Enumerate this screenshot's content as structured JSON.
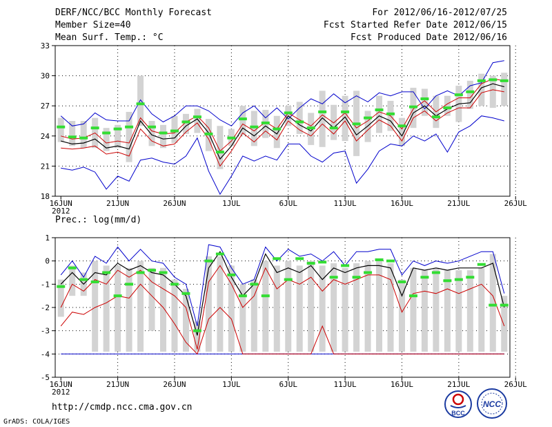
{
  "header": {
    "title": "DERF/NCC/BCC Monthly Forecast",
    "member_size": "Member Size=40",
    "variable": "Mean Surf. Temp.: °C",
    "forecast_for": "For 2012/06/16-2012/07/25",
    "start_refer": "Fcst Started Refer Date 2012/06/15",
    "produced": "Fcst Produced Date 2012/06/16"
  },
  "footer": {
    "url": "http://cmdp.ncc.cma.gov.cn",
    "credit": "GrADS: COLA/IGES",
    "logo1_text": "BCC",
    "logo2_text": "NCC"
  },
  "colors": {
    "max_line": "#0000cc",
    "min_line": "#ff0000",
    "mean_line": "#000000",
    "quartile_line": "#cc0000",
    "box": "#d3d3d3",
    "median": "#33dd33",
    "grid": "#000000"
  },
  "chart_data": [
    {
      "type": "box-line",
      "title": "Mean Surf. Temp.: °C",
      "ylabel": "°C",
      "xlabel": "",
      "ylim": [
        18,
        33
      ],
      "yticks": [
        18,
        21,
        24,
        27,
        30,
        33
      ],
      "x_tick_labels": [
        "16JUN\n2012",
        "21JUN",
        "26JUN",
        "1JUL",
        "6JUL",
        "11JUL",
        "16JUL",
        "21JUL",
        "26JUL"
      ],
      "days": 40,
      "series": [
        {
          "name": "ensemble max",
          "color": "#0000cc",
          "values": [
            26.0,
            25.0,
            25.2,
            26.3,
            25.6,
            25.5,
            25.5,
            27.6,
            26.2,
            25.4,
            26.0,
            27.0,
            27.0,
            26.5,
            25.6,
            25.0,
            26.3,
            27.0,
            25.8,
            26.8,
            25.7,
            26.8,
            27.7,
            27.2,
            28.2,
            27.3,
            28.0,
            27.4,
            28.3,
            28.0,
            28.4,
            28.4,
            26.7,
            28.0,
            28.5,
            28.0,
            29.0,
            29.3,
            31.3,
            31.5
          ]
        },
        {
          "name": "ensemble min",
          "color": "#0000cc",
          "values": [
            20.8,
            20.6,
            20.9,
            20.4,
            18.7,
            20.0,
            19.5,
            21.6,
            21.8,
            21.4,
            21.2,
            22.0,
            23.8,
            20.5,
            18.2,
            20.0,
            22.0,
            21.5,
            22.0,
            21.6,
            23.2,
            23.2,
            22.0,
            21.4,
            22.3,
            22.5,
            19.3,
            20.7,
            22.5,
            23.2,
            23.0,
            24.0,
            23.5,
            24.2,
            22.4,
            24.4,
            25.0,
            26.0,
            25.8,
            25.5
          ]
        },
        {
          "name": "ensemble mean",
          "color": "#000000",
          "values": [
            23.5,
            23.2,
            23.3,
            23.7,
            22.8,
            23.0,
            22.7,
            25.5,
            24.1,
            23.7,
            23.8,
            25.0,
            25.7,
            24.3,
            21.7,
            23.0,
            24.8,
            24.0,
            25.0,
            24.2,
            26.0,
            25.1,
            24.5,
            25.8,
            24.8,
            25.9,
            24.1,
            25.0,
            26.0,
            25.5,
            24.0,
            26.3,
            27.0,
            26.0,
            26.7,
            27.2,
            27.3,
            28.8,
            29.2,
            28.9
          ]
        },
        {
          "name": "quartile upper",
          "color": "#cc0000",
          "values": [
            24.0,
            23.7,
            23.8,
            24.3,
            23.3,
            23.5,
            23.3,
            25.8,
            24.5,
            24.2,
            24.3,
            25.4,
            26.0,
            24.8,
            22.5,
            23.5,
            25.2,
            24.5,
            25.4,
            24.7,
            26.3,
            25.6,
            25.0,
            26.1,
            25.3,
            26.3,
            24.8,
            25.5,
            26.4,
            26.0,
            24.7,
            26.7,
            27.5,
            26.4,
            27.2,
            27.8,
            27.8,
            29.2,
            29.7,
            29.5
          ]
        },
        {
          "name": "quartile lower",
          "color": "#cc0000",
          "values": [
            22.8,
            22.7,
            22.8,
            23.0,
            22.2,
            22.4,
            22.0,
            24.7,
            23.5,
            23.0,
            23.2,
            24.4,
            25.3,
            23.7,
            21.0,
            22.5,
            24.3,
            23.4,
            24.5,
            23.6,
            25.5,
            24.6,
            24.0,
            25.2,
            24.2,
            25.5,
            23.5,
            24.6,
            25.6,
            25.0,
            23.5,
            25.8,
            26.5,
            25.5,
            26.3,
            26.8,
            26.8,
            28.3,
            28.6,
            28.4
          ]
        },
        {
          "name": "median",
          "color": "#33dd33",
          "values": [
            24.9,
            23.9,
            23.8,
            24.8,
            24.3,
            24.7,
            24.9,
            27.2,
            24.9,
            24.3,
            24.5,
            25.4,
            25.9,
            24.2,
            22.4,
            23.8,
            25.7,
            24.9,
            25.3,
            24.7,
            26.3,
            25.4,
            24.8,
            26.4,
            24.8,
            26.4,
            25.2,
            25.8,
            26.6,
            26.2,
            25.0,
            26.9,
            27.7,
            25.9,
            26.8,
            28.1,
            28.4,
            29.5,
            29.6,
            29.5
          ]
        },
        {
          "name": "box upper",
          "color": "#d3d3d3",
          "values": [
            25.8,
            25.5,
            25.5,
            25.8,
            24.8,
            25.1,
            26.4,
            30.0,
            25.5,
            25.1,
            26.0,
            26.2,
            26.7,
            25.7,
            25.0,
            24.7,
            27.0,
            26.5,
            26.6,
            26.0,
            27.0,
            27.4,
            26.3,
            28.5,
            27.1,
            28.0,
            28.5,
            26.5,
            28.0,
            27.5,
            25.8,
            28.8,
            28.7,
            28.0,
            28.0,
            29.0,
            29.5,
            30.2,
            30.0,
            30.3
          ]
        },
        {
          "name": "box lower",
          "color": "#d3d3d3",
          "values": [
            23.4,
            23.0,
            22.8,
            22.8,
            22.5,
            22.8,
            21.4,
            25.0,
            23.0,
            22.8,
            23.3,
            24.2,
            24.3,
            22.5,
            20.7,
            23.0,
            24.1,
            23.0,
            23.8,
            22.8,
            25.0,
            24.2,
            23.1,
            22.9,
            23.6,
            23.5,
            22.0,
            23.4,
            24.3,
            24.5,
            23.0,
            24.8,
            26.0,
            24.8,
            26.0,
            25.4,
            26.7,
            27.0,
            26.8,
            27.0
          ]
        }
      ]
    },
    {
      "type": "box-line",
      "title": "Prec.: log(mm/d)",
      "ylabel": "log(mm/d)",
      "xlabel": "",
      "ylim": [
        -5,
        1
      ],
      "yticks": [
        -5,
        -4,
        -3,
        -2,
        -1,
        0,
        1
      ],
      "x_tick_labels": [
        "16JUN\n2012",
        "21JUN",
        "26JUN",
        "1JUL",
        "6JUL",
        "11JUL",
        "16JUL",
        "21JUL",
        "26JUL"
      ],
      "days": 40,
      "series": [
        {
          "name": "ensemble max",
          "color": "#0000cc",
          "values": [
            -0.6,
            0.0,
            -0.7,
            0.2,
            -0.1,
            0.6,
            0.0,
            0.5,
            0.0,
            -0.1,
            -0.7,
            -1.0,
            -2.8,
            0.7,
            0.6,
            -0.3,
            -1.0,
            -0.8,
            0.6,
            0.0,
            0.5,
            0.2,
            0.3,
            0.0,
            0.4,
            -0.2,
            0.4,
            0.4,
            0.5,
            0.5,
            -0.6,
            0.0,
            -0.2,
            0.0,
            -0.1,
            0.0,
            0.2,
            0.4,
            0.4,
            -1.4
          ]
        },
        {
          "name": "ensemble min",
          "color": "#0000cc",
          "values": [
            -4.0,
            -4.0,
            -4.0,
            -4.0,
            -4.0,
            -4.0,
            -4.0,
            -4.0,
            -4.0,
            -4.0,
            -4.0,
            -4.0,
            -4.0,
            -4.0,
            -4.0,
            -4.0,
            -4.0,
            -4.0,
            -4.0,
            -4.0,
            -4.0,
            -4.0,
            -4.0,
            -4.0,
            -4.0,
            -4.0,
            -4.0,
            -4.0,
            -4.0,
            -4.0,
            -4.0,
            -4.0,
            -4.0,
            -4.0,
            -4.0,
            -4.0,
            -4.0,
            -4.0,
            -4.0,
            -4.0
          ]
        },
        {
          "name": "ensemble mean",
          "color": "#000000",
          "values": [
            -1.0,
            -0.5,
            -1.0,
            -0.5,
            -0.6,
            -0.1,
            -0.4,
            -0.2,
            -0.5,
            -0.6,
            -1.0,
            -1.5,
            -3.2,
            -0.3,
            0.4,
            -0.7,
            -1.5,
            -1.0,
            0.3,
            -0.5,
            -0.3,
            -0.5,
            -0.2,
            -0.8,
            -0.3,
            -0.5,
            -0.3,
            -0.2,
            -0.2,
            -0.3,
            -1.5,
            -0.3,
            -0.4,
            -0.3,
            -0.4,
            -0.3,
            -0.3,
            -0.3,
            -0.1,
            -2.0
          ]
        },
        {
          "name": "quartile upper",
          "color": "#cc0000",
          "values": [
            -2.8,
            -2.2,
            -2.3,
            -2.0,
            -1.8,
            -1.5,
            -1.6,
            -1.0,
            -1.5,
            -2.0,
            -2.7,
            -3.5,
            -4.0,
            -2.5,
            -2.0,
            -2.5,
            -4.0,
            -4.0,
            -4.0,
            -4.0,
            -4.0,
            -4.0,
            -4.0,
            -2.8,
            -4.0,
            -4.0,
            -4.0,
            -4.0,
            -4.0,
            -4.0,
            -4.0,
            -4.0,
            -4.0,
            -4.0,
            -4.0,
            -4.0,
            -4.0,
            -4.0,
            -4.0,
            -4.0
          ]
        },
        {
          "name": "quartile lower",
          "color": "#cc0000",
          "values": [
            -2.0,
            -1.0,
            -1.3,
            -0.8,
            -1.0,
            -0.4,
            -0.7,
            -0.4,
            -0.9,
            -1.2,
            -1.5,
            -2.0,
            -3.8,
            -0.9,
            -0.2,
            -1.0,
            -2.0,
            -1.5,
            -0.3,
            -1.2,
            -0.8,
            -1.0,
            -0.7,
            -1.3,
            -0.8,
            -1.0,
            -0.8,
            -0.6,
            -0.6,
            -0.8,
            -2.2,
            -1.4,
            -1.3,
            -1.4,
            -1.2,
            -1.4,
            -1.2,
            -1.0,
            -1.5,
            -2.8
          ]
        },
        {
          "name": "median",
          "color": "#33dd33",
          "values": [
            -1.1,
            -0.3,
            -0.8,
            -0.9,
            -0.5,
            -1.5,
            -1.0,
            -0.5,
            -0.4,
            -0.5,
            -1.0,
            -1.4,
            -3.0,
            0.0,
            0.3,
            -0.6,
            -1.5,
            -1.0,
            -1.5,
            0.1,
            -0.8,
            0.1,
            -0.1,
            -0.05,
            -0.7,
            -0.2,
            -0.7,
            -0.5,
            0.05,
            0.0,
            -0.9,
            -1.5,
            -0.7,
            -0.5,
            -0.85,
            -0.8,
            -0.7,
            -0.15,
            -1.9,
            -1.9
          ]
        },
        {
          "name": "box upper",
          "color": "#d3d3d3",
          "values": [
            -0.8,
            -0.2,
            -0.5,
            0.0,
            -0.2,
            -0.2,
            -0.3,
            0.0,
            -0.3,
            -0.3,
            -0.8,
            -1.2,
            -2.6,
            0.2,
            0.2,
            -0.2,
            -1.0,
            -0.8,
            0.0,
            -0.2,
            0.0,
            -0.2,
            0.0,
            -0.2,
            -0.1,
            -0.3,
            -0.1,
            0.0,
            0.0,
            -0.1,
            -0.8,
            -0.3,
            -0.4,
            -0.3,
            -0.4,
            -0.4,
            -0.4,
            -0.3,
            0.3,
            -1.5
          ]
        },
        {
          "name": "box lower",
          "color": "#d3d3d3",
          "values": [
            -2.4,
            -1.5,
            -1.5,
            -3.9,
            -3.9,
            -3.9,
            -3.9,
            -3.9,
            -3.0,
            -3.9,
            -3.9,
            -3.9,
            -3.9,
            -3.9,
            -3.9,
            -3.9,
            -3.9,
            -3.9,
            -3.9,
            -3.9,
            -3.9,
            -3.9,
            -3.9,
            -3.9,
            -3.9,
            -3.9,
            -3.9,
            -3.9,
            -3.9,
            -3.9,
            -3.9,
            -3.9,
            -3.9,
            -3.9,
            -3.9,
            -3.9,
            -3.9,
            -3.9,
            -3.9,
            -3.9
          ]
        }
      ]
    }
  ]
}
